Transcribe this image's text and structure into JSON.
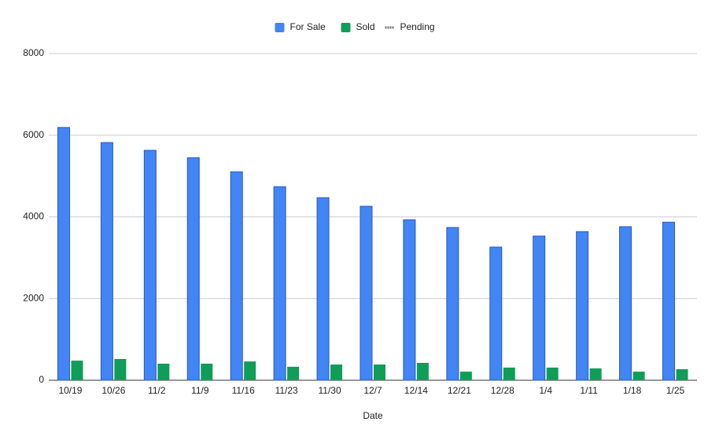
{
  "chart_data": {
    "type": "bar",
    "categories": [
      "10/19",
      "10/26",
      "11/2",
      "11/9",
      "11/16",
      "11/23",
      "11/30",
      "12/7",
      "12/14",
      "12/21",
      "12/28",
      "1/4",
      "1/11",
      "1/18",
      "1/25"
    ],
    "series": [
      {
        "name": "For Sale",
        "color": "#4285f4",
        "values": [
          6190,
          5820,
          5630,
          5450,
          5105,
          4740,
          4470,
          4260,
          3930,
          3740,
          3260,
          3530,
          3640,
          3760,
          3870
        ]
      },
      {
        "name": "Sold",
        "color": "#0f9d58",
        "values": [
          480,
          520,
          405,
          405,
          460,
          330,
          385,
          385,
          425,
          210,
          310,
          310,
          290,
          210,
          270
        ]
      },
      {
        "name": "Pending",
        "color": "#757575",
        "type": "line",
        "values": [
          null,
          null,
          null,
          null,
          null,
          null,
          null,
          null,
          null,
          null,
          null,
          null,
          null,
          null,
          null
        ]
      }
    ],
    "x_label": "Date",
    "ylim": [
      0,
      8000
    ],
    "yticks": [
      0,
      2000,
      4000,
      6000,
      8000
    ],
    "grid": true,
    "legend": "top"
  }
}
